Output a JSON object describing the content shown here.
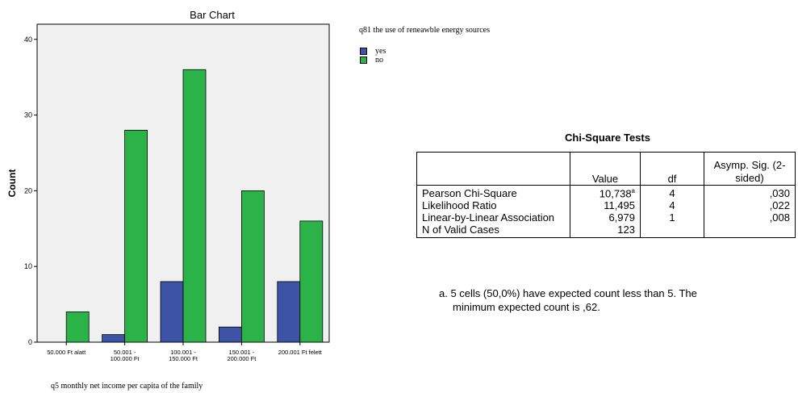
{
  "chart_data": {
    "type": "bar",
    "title": "Bar Chart",
    "xlabel": "q5 monthly net income per capita of the family",
    "ylabel": "Count",
    "ylim": [
      0,
      42
    ],
    "yticks": [
      0,
      10,
      20,
      30,
      40
    ],
    "categories": [
      [
        "50.000 Ft alatt"
      ],
      [
        "50.001 -",
        "100.000 Ft"
      ],
      [
        "100.001 -",
        "150.000 Ft"
      ],
      [
        "150.001 -",
        "200.000 Ft"
      ],
      [
        "200.001 Ft felett"
      ]
    ],
    "legend_title": "q81 the use of reneawble energy sources",
    "legend_placement": "right",
    "grid": false,
    "series": [
      {
        "name": "yes",
        "color": "#3d53a5",
        "values": [
          0,
          1,
          8,
          2,
          8
        ]
      },
      {
        "name": "no",
        "color": "#2bb34a",
        "values": [
          4,
          28,
          36,
          20,
          16
        ]
      }
    ],
    "plot_background": "#f0f0f0"
  },
  "chi_table": {
    "title": "Chi-Square Tests",
    "headers": [
      "",
      "Value",
      "df",
      "Asymp. Sig. (2-sided)"
    ],
    "rows": [
      {
        "label": "Pearson Chi-Square",
        "value": "10,738",
        "sup": "a",
        "df": "4",
        "sig": ",030"
      },
      {
        "label": "Likelihood Ratio",
        "value": "11,495",
        "sup": "",
        "df": "4",
        "sig": ",022"
      },
      {
        "label": "Linear-by-Linear Association",
        "value": "6,979",
        "sup": "",
        "df": "1",
        "sig": ",008"
      },
      {
        "label": "N of Valid Cases",
        "value": "123",
        "sup": "",
        "df": "",
        "sig": ""
      }
    ],
    "footnote_line1": "a. 5 cells (50,0%) have expected count less than 5. The",
    "footnote_line2": "minimum expected count is ,62."
  }
}
